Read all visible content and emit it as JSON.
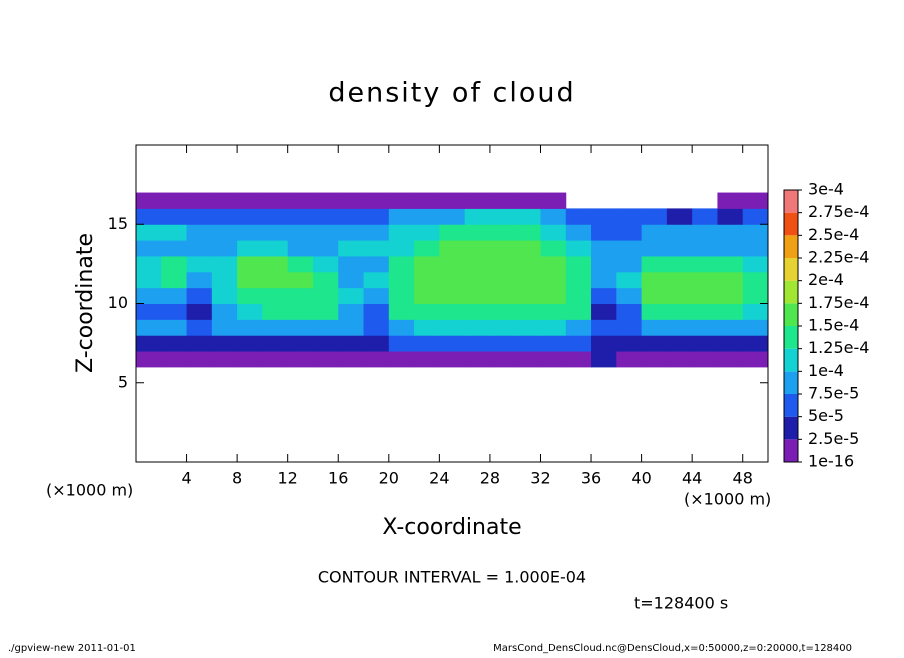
{
  "chart_data": {
    "type": "heatmap",
    "title": "density of cloud",
    "x_label": "X-coordinate",
    "y_label": "Z-coordinate",
    "x_unit": "(×1000 m)",
    "y_unit": "(×1000 m)",
    "xlim": [
      0,
      50
    ],
    "ylim": [
      0,
      20
    ],
    "xticks": [
      4,
      8,
      12,
      16,
      20,
      24,
      28,
      32,
      36,
      40,
      44,
      48
    ],
    "yticks": [
      5,
      10,
      15
    ],
    "xbins": [
      0,
      2,
      4,
      6,
      8,
      10,
      12,
      14,
      16,
      18,
      20,
      22,
      24,
      26,
      28,
      30,
      32,
      34,
      36,
      38,
      40,
      42,
      44,
      46,
      48,
      50
    ],
    "zbins": [
      6,
      7,
      8,
      9,
      10,
      11,
      12,
      13,
      14,
      15,
      16,
      17
    ],
    "values": [
      [
        1e-05,
        1e-05,
        1e-05,
        1e-05,
        1e-05,
        1e-05,
        1e-05,
        1e-05,
        1e-05,
        1e-05,
        1e-05,
        1e-05,
        1e-05,
        1e-05,
        1e-05,
        1e-05,
        1e-05,
        1e-05,
        3e-05,
        1e-05,
        1e-05,
        1e-05,
        1e-05,
        1e-05,
        1e-05
      ],
      [
        3e-05,
        3e-05,
        3e-05,
        3e-05,
        3e-05,
        3e-05,
        3e-05,
        3e-05,
        3e-05,
        3e-05,
        6e-05,
        6e-05,
        6e-05,
        6e-05,
        6e-05,
        6e-05,
        6e-05,
        6e-05,
        3e-05,
        3e-05,
        3e-05,
        3e-05,
        3e-05,
        3e-05,
        3e-05
      ],
      [
        8e-05,
        8e-05,
        6e-05,
        8e-05,
        8e-05,
        8e-05,
        8e-05,
        8e-05,
        8e-05,
        6e-05,
        8e-05,
        0.00011,
        0.00011,
        0.00011,
        0.00011,
        0.00011,
        0.00011,
        8e-05,
        6e-05,
        6e-05,
        8e-05,
        8e-05,
        8e-05,
        8e-05,
        8e-05
      ],
      [
        6e-05,
        6e-05,
        3e-05,
        8e-05,
        0.00011,
        0.00014,
        0.00014,
        0.00014,
        8e-05,
        6e-05,
        0.00014,
        0.00014,
        0.00014,
        0.00014,
        0.00014,
        0.00014,
        0.00014,
        0.00014,
        3e-05,
        6e-05,
        0.00014,
        0.00014,
        0.00014,
        0.00014,
        0.00011
      ],
      [
        8e-05,
        8e-05,
        6e-05,
        0.00011,
        0.00014,
        0.00014,
        0.00014,
        0.00014,
        0.00011,
        8e-05,
        0.00014,
        0.00016,
        0.00016,
        0.00016,
        0.00016,
        0.00016,
        0.00016,
        0.00014,
        6e-05,
        8e-05,
        0.00016,
        0.00016,
        0.00016,
        0.00016,
        0.00014
      ],
      [
        0.00011,
        0.00014,
        8e-05,
        0.00011,
        0.00016,
        0.00016,
        0.00016,
        0.00014,
        8e-05,
        0.00011,
        0.00014,
        0.00016,
        0.00016,
        0.00016,
        0.00016,
        0.00016,
        0.00016,
        0.00014,
        8e-05,
        0.00011,
        0.00016,
        0.00016,
        0.00016,
        0.00016,
        0.00014
      ],
      [
        0.00011,
        0.00014,
        0.00011,
        0.00011,
        0.00016,
        0.00016,
        0.00014,
        0.00011,
        8e-05,
        8e-05,
        0.00014,
        0.00016,
        0.00016,
        0.00016,
        0.00016,
        0.00016,
        0.00016,
        0.00014,
        8e-05,
        8e-05,
        0.00014,
        0.00014,
        0.00014,
        0.00014,
        0.00011
      ],
      [
        8e-05,
        8e-05,
        8e-05,
        8e-05,
        0.00011,
        0.00011,
        8e-05,
        8e-05,
        0.00011,
        0.00011,
        0.00011,
        0.00014,
        0.00016,
        0.00016,
        0.00016,
        0.00016,
        0.00014,
        0.00011,
        8e-05,
        8e-05,
        8e-05,
        8e-05,
        8e-05,
        8e-05,
        8e-05
      ],
      [
        0.00011,
        0.00011,
        8e-05,
        8e-05,
        8e-05,
        8e-05,
        8e-05,
        8e-05,
        8e-05,
        8e-05,
        0.00011,
        0.00011,
        0.00014,
        0.00014,
        0.00014,
        0.00014,
        0.00011,
        8e-05,
        6e-05,
        6e-05,
        8e-05,
        8e-05,
        8e-05,
        8e-05,
        8e-05
      ],
      [
        6e-05,
        6e-05,
        6e-05,
        6e-05,
        6e-05,
        6e-05,
        6e-05,
        6e-05,
        6e-05,
        6e-05,
        8e-05,
        8e-05,
        8e-05,
        0.00011,
        0.00011,
        0.00011,
        8e-05,
        6e-05,
        6e-05,
        6e-05,
        6e-05,
        3e-05,
        6e-05,
        3e-05,
        6e-05
      ],
      [
        1e-05,
        1e-05,
        1e-05,
        1e-05,
        1e-05,
        1e-05,
        1e-05,
        1e-05,
        1e-05,
        1e-05,
        1e-05,
        1e-05,
        1e-05,
        1e-05,
        1e-05,
        1e-05,
        1e-05,
        null,
        null,
        null,
        null,
        null,
        null,
        1e-05,
        1e-05
      ]
    ],
    "levels": [
      {
        "value": 1e-16,
        "label": "1e-16"
      },
      {
        "value": 2.5e-05,
        "label": "2.5e-5"
      },
      {
        "value": 5e-05,
        "label": "5e-5"
      },
      {
        "value": 7.5e-05,
        "label": "7.5e-5"
      },
      {
        "value": 0.0001,
        "label": "1e-4"
      },
      {
        "value": 0.000125,
        "label": "1.25e-4"
      },
      {
        "value": 0.00015,
        "label": "1.5e-4"
      },
      {
        "value": 0.000175,
        "label": "1.75e-4"
      },
      {
        "value": 0.0002,
        "label": "2e-4"
      },
      {
        "value": 0.000225,
        "label": "2.25e-4"
      },
      {
        "value": 0.00025,
        "label": "2.5e-4"
      },
      {
        "value": 0.000275,
        "label": "2.75e-4"
      },
      {
        "value": 0.0003,
        "label": "3e-4"
      }
    ],
    "colors": [
      "#7a1eb4",
      "#1e1eaa",
      "#1e5aee",
      "#1ea0f0",
      "#14d2d2",
      "#1ee68c",
      "#50e650",
      "#a0e632",
      "#e6d232",
      "#f0a014",
      "#f05014",
      "#f07878"
    ],
    "contour_note": "CONTOUR INTERVAL = 1.000E-04",
    "time_note": "t=128400 s",
    "footer_left": "./gpview-new  2011-01-01",
    "footer_right": "MarsCond_DensCloud.nc@DensCloud,x=0:50000,z=0:20000,t=128400"
  }
}
